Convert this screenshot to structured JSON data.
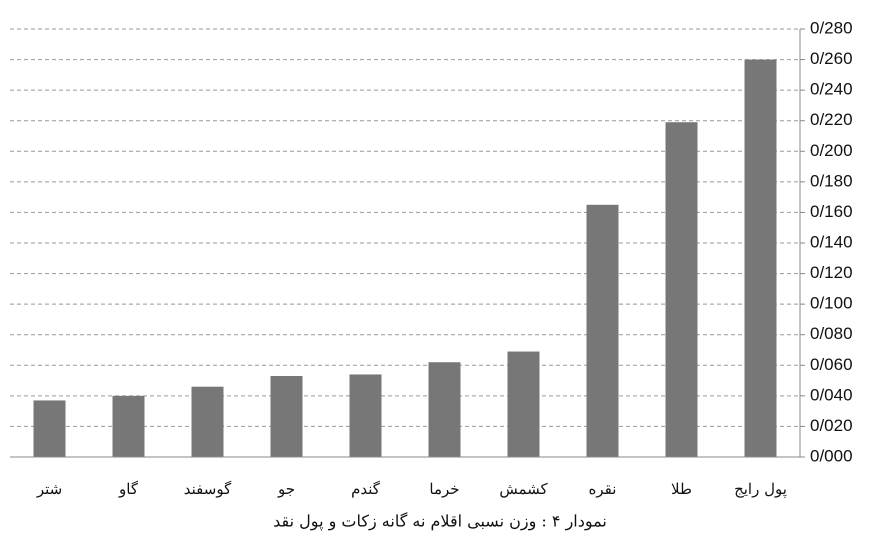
{
  "chart_data": {
    "type": "bar",
    "title": "نمودار ۴ : وزن نسبی اقلام نه گانه زکات و پول نقد",
    "categories": [
      "شتر",
      "گاو",
      "گوسفند",
      "جو",
      "گندم",
      "خرما",
      "کشمش",
      "نقره",
      "طلا",
      "پول رایج"
    ],
    "values": [
      0.037,
      0.04,
      0.046,
      0.053,
      0.054,
      0.062,
      0.069,
      0.165,
      0.219,
      0.26
    ],
    "color": "#777777",
    "ylim": [
      0,
      0.28
    ],
    "yticks": [
      {
        "value": 0,
        "label": "0/000"
      },
      {
        "value": 0.02,
        "label": "0/020"
      },
      {
        "value": 0.04,
        "label": "0/040"
      },
      {
        "value": 0.06,
        "label": "0/060"
      },
      {
        "value": 0.08,
        "label": "0/080"
      },
      {
        "value": 0.1,
        "label": "0/100"
      },
      {
        "value": 0.12,
        "label": "0/120"
      },
      {
        "value": 0.14,
        "label": "0/140"
      },
      {
        "value": 0.16,
        "label": "0/160"
      },
      {
        "value": 0.18,
        "label": "0/180"
      },
      {
        "value": 0.2,
        "label": "0/200"
      },
      {
        "value": 0.22,
        "label": "0/220"
      },
      {
        "value": 0.24,
        "label": "0/240"
      },
      {
        "value": 0.26,
        "label": "0/260"
      },
      {
        "value": 0.28,
        "label": "0/280"
      }
    ],
    "grid": true
  }
}
